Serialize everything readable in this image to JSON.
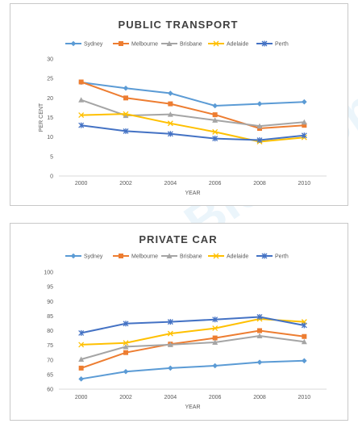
{
  "watermark": "IELTS-Blog.com",
  "colors": {
    "Sydney": "#5b9bd5",
    "Melbourne": "#ed7d31",
    "Brisbane": "#a5a5a5",
    "Adelaide": "#ffc000",
    "Perth": "#4472c4"
  },
  "chart_data": [
    {
      "type": "line",
      "title": "PUBLIC TRANSPORT",
      "xlabel": "YEAR",
      "ylabel": "PER CENT",
      "categories": [
        "2000",
        "2002",
        "2004",
        "2006",
        "2008",
        "2010"
      ],
      "ylim": [
        0,
        30
      ],
      "yticks": [
        0,
        5,
        10,
        15,
        20,
        25,
        30
      ],
      "grid": false,
      "legend": "top",
      "series": [
        {
          "name": "Sydney",
          "marker": "diamond",
          "values": [
            24,
            22.5,
            21.2,
            18,
            18.5,
            19
          ]
        },
        {
          "name": "Melbourne",
          "marker": "square",
          "values": [
            24.1,
            20,
            18.5,
            15.7,
            12.2,
            13
          ]
        },
        {
          "name": "Brisbane",
          "marker": "triangle",
          "values": [
            19.5,
            15.5,
            15.8,
            14.3,
            12.8,
            13.8
          ]
        },
        {
          "name": "Adelaide",
          "marker": "x",
          "values": [
            15.6,
            15.9,
            13.5,
            11.3,
            8.8,
            9.9
          ]
        },
        {
          "name": "Perth",
          "marker": "star",
          "values": [
            13,
            11.5,
            10.8,
            9.6,
            9.2,
            10.4
          ]
        }
      ]
    },
    {
      "type": "line",
      "title": "PRIVATE CAR",
      "xlabel": "YEAR",
      "ylabel": "",
      "categories": [
        "2000",
        "2002",
        "2004",
        "2006",
        "2008",
        "2010"
      ],
      "ylim": [
        60,
        100
      ],
      "yticks": [
        60,
        65,
        70,
        75,
        80,
        85,
        90,
        95,
        100
      ],
      "grid": false,
      "legend": "top",
      "series": [
        {
          "name": "Sydney",
          "marker": "diamond",
          "values": [
            63.5,
            66,
            67.2,
            68,
            69.2,
            69.7
          ]
        },
        {
          "name": "Melbourne",
          "marker": "square",
          "values": [
            67.2,
            72.5,
            75.4,
            77.5,
            80,
            78
          ]
        },
        {
          "name": "Brisbane",
          "marker": "triangle",
          "values": [
            70.2,
            74.5,
            75.2,
            76,
            78.2,
            76.2
          ]
        },
        {
          "name": "Adelaide",
          "marker": "x",
          "values": [
            75.2,
            75.8,
            79,
            80.8,
            84,
            83
          ]
        },
        {
          "name": "Perth",
          "marker": "star",
          "values": [
            79.2,
            82.4,
            83,
            83.8,
            84.7,
            81.8
          ]
        }
      ]
    }
  ]
}
